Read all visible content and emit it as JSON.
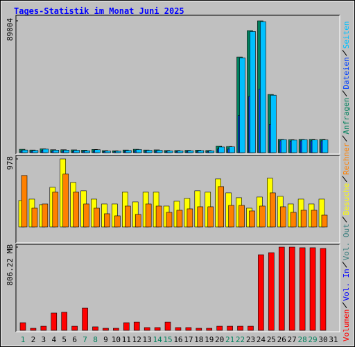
{
  "chart_data": [
    {
      "type": "bar",
      "title": "Tages-Statistik im Monat Juni 2025",
      "ylim": [
        0,
        92750
      ],
      "yticks": [
        89004
      ],
      "series": [
        {
          "name": "Anfragen",
          "color": "#00805C",
          "values": [
            2300,
            1800,
            2600,
            2000,
            2000,
            1900,
            1700,
            2200,
            1400,
            1300,
            1800,
            2300,
            1800,
            1900,
            1500,
            1500,
            1600,
            1700,
            1500,
            4500,
            4200,
            64600,
            82400,
            89004,
            39300,
            9000,
            8800,
            9000,
            9000,
            9000,
            null
          ]
        },
        {
          "name": "Dateien",
          "color": "#0040FF",
          "values": [
            1300,
            1000,
            1500,
            1100,
            1100,
            1000,
            900,
            1200,
            800,
            700,
            1000,
            1300,
            1000,
            1000,
            800,
            800,
            900,
            900,
            800,
            2500,
            2400,
            25000,
            38000,
            43000,
            19000,
            8000,
            7800,
            8000,
            8000,
            8000,
            null
          ]
        },
        {
          "name": "Seiten",
          "color": "#00C0FF",
          "values": [
            1800,
            1500,
            2400,
            1700,
            1700,
            1600,
            1300,
            2000,
            1100,
            1000,
            1500,
            2100,
            1600,
            1600,
            1200,
            1200,
            1300,
            1400,
            1200,
            3800,
            3900,
            64000,
            81800,
            88400,
            38800,
            8800,
            8500,
            8800,
            8600,
            8600,
            null
          ]
        }
      ]
    },
    {
      "type": "bar",
      "ylim": [
        0,
        1028
      ],
      "yticks": [
        978
      ],
      "series": [
        {
          "name": "Besuche",
          "color": "#FFFF00",
          "values": [
            380,
            400,
            320,
            570,
            978,
            640,
            520,
            400,
            330,
            330,
            500,
            360,
            500,
            500,
            300,
            370,
            410,
            520,
            500,
            690,
            490,
            420,
            270,
            430,
            700,
            440,
            330,
            400,
            330,
            400,
            null
          ]
        },
        {
          "name": "Rechner",
          "color": "#FF8000",
          "values": [
            740,
            270,
            330,
            500,
            760,
            500,
            330,
            270,
            190,
            160,
            300,
            180,
            330,
            300,
            210,
            240,
            260,
            290,
            290,
            580,
            310,
            310,
            230,
            300,
            490,
            290,
            210,
            240,
            240,
            170,
            null
          ]
        }
      ]
    },
    {
      "type": "bar",
      "ylim": [
        0,
        833
      ],
      "yticks": [
        {
          "value": 806.22,
          "label": "806.22 MB"
        }
      ],
      "categories": [
        "1",
        "2",
        "3",
        "4",
        "5",
        "6",
        "7",
        "8",
        "9",
        "10",
        "11",
        "12",
        "13",
        "14",
        "15",
        "16",
        "17",
        "18",
        "19",
        "20",
        "21",
        "22",
        "23",
        "24",
        "25",
        "26",
        "27",
        "28",
        "29",
        "30",
        "31"
      ],
      "category_colors": [
        "#00805C",
        "#000000",
        "#000000",
        "#000000",
        "#000000",
        "#000000",
        "#00805C",
        "#00805C",
        "#000000",
        "#000000",
        "#000000",
        "#000000",
        "#000000",
        "#00805C",
        "#00805C",
        "#000000",
        "#000000",
        "#000000",
        "#000000",
        "#000000",
        "#00805C",
        "#00805C",
        "#000000",
        "#000000",
        "#000000",
        "#000000",
        "#000000",
        "#00805C",
        "#00805C",
        "#000000",
        "#000000"
      ],
      "series": [
        {
          "name": "Volumen",
          "color": "#FF0000",
          "values": [
            74,
            20,
            40,
            168,
            175,
            40,
            215,
            34,
            20,
            20,
            74,
            80,
            27,
            27,
            80,
            27,
            27,
            20,
            20,
            40,
            40,
            40,
            40,
            732,
            752,
            806,
            806,
            800,
            800,
            793,
            null
          ]
        },
        {
          "name": "Vol. In",
          "color": "#0000FF"
        },
        {
          "name": "Vol. Out",
          "color": "#408080"
        }
      ]
    }
  ]
}
